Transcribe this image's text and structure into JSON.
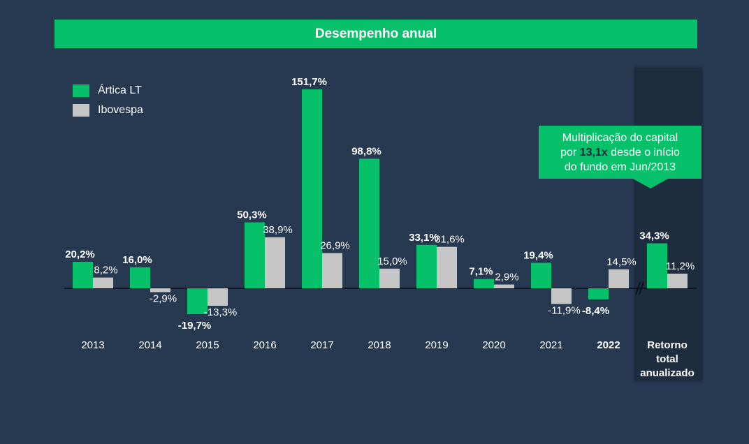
{
  "title": "Desempenho anual",
  "colors": {
    "background": "#273851",
    "fund": "#07c16a",
    "index": "#c6c6c6",
    "highlight_panel": "#1e2c40",
    "axis": "#0b0f14",
    "text": "#ffffff",
    "callout_emphasis": "#17293b"
  },
  "legend": [
    {
      "label": "Ártica LT",
      "color": "#07c16a"
    },
    {
      "label": "Ibovespa",
      "color": "#c6c6c6"
    }
  ],
  "callout": {
    "line1": "Multiplicação do capital",
    "line2_prefix": "por ",
    "line2_emphasis": "13,1x",
    "line2_suffix": " desde o início",
    "line3": "do fundo em Jun/2013"
  },
  "chart_data": {
    "type": "bar",
    "title": "Desempenho anual",
    "xlabel": "",
    "ylabel": "",
    "ylim": [
      -25,
      160
    ],
    "grid": false,
    "legend_position": "top-left",
    "categories": [
      "2013",
      "2014",
      "2015",
      "2016",
      "2017",
      "2018",
      "2019",
      "2020",
      "2021",
      "2022",
      "Retorno total anualizado"
    ],
    "category_labels": [
      [
        "2013"
      ],
      [
        "2014"
      ],
      [
        "2015"
      ],
      [
        "2016"
      ],
      [
        "2017"
      ],
      [
        "2018"
      ],
      [
        "2019"
      ],
      [
        "2020"
      ],
      [
        "2021"
      ],
      [
        "2022"
      ],
      [
        "Retorno",
        "total",
        "anualizado"
      ]
    ],
    "bold_categories": [
      "2022",
      "Retorno total anualizado"
    ],
    "axis_break_before": "Retorno total anualizado",
    "series": [
      {
        "name": "Ártica LT",
        "color": "#07c16a",
        "values": [
          20.2,
          16.0,
          -19.7,
          50.3,
          151.7,
          98.8,
          33.1,
          7.1,
          19.4,
          -8.4,
          34.3
        ],
        "labels": [
          "20,2%",
          "16,0%",
          "-19,7%",
          "50,3%",
          "151,7%",
          "98,8%",
          "33,1%",
          "7,1%",
          "19,4%",
          "-8,4%",
          "34,3%"
        ],
        "label_bold": true
      },
      {
        "name": "Ibovespa",
        "color": "#c6c6c6",
        "values": [
          8.2,
          -2.9,
          -13.3,
          38.9,
          26.9,
          15.0,
          31.6,
          2.9,
          -11.9,
          14.5,
          11.2
        ],
        "labels": [
          "8,2%",
          "-2,9%",
          "-13,3%",
          "38,9%",
          "26,9%",
          "15,0%",
          "31,6%",
          "2,9%",
          "-11,9%",
          "14,5%",
          "11,2%"
        ],
        "label_bold": false
      }
    ]
  }
}
